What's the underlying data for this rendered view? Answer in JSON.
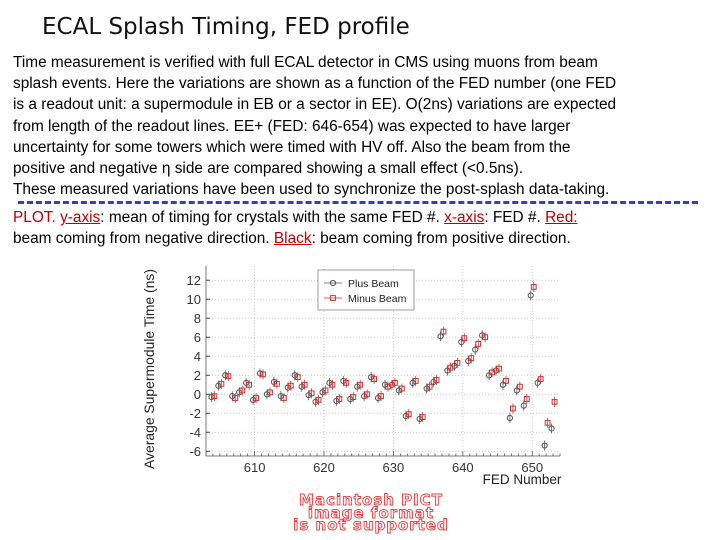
{
  "slide": {
    "title": "ECAL Splash Timing, FED profile",
    "paragraph": [
      "Time measurement is verified with full ECAL detector in CMS using muons from beam",
      "splash events. Here the variations are shown as a function of the FED number (one FED",
      "is a readout unit: a supermodule in EB or a sector in EE). O(2ns) variations are expected",
      "from length of the readout lines. EE+ (FED: 646-654) was expected to have larger",
      "uncertainty for some towers which were timed with HV off. Also the beam from the",
      "positive and negative η side are compared showing a small effect (<0.5ns).",
      "These measured variations have been used to synchronize the post-splash data-taking."
    ],
    "caption": {
      "lead": "PLOT.",
      "yaxis_term": "y-axis",
      "yaxis_text": ": mean of timing for crystals with the same FED #.",
      "xaxis_term": "x-axis",
      "xaxis_text": ": FED #.",
      "red_term": "Red",
      "red_text_1": ":",
      "red_text_2": "beam coming from negative direction.",
      "black_term": "Black",
      "black_text": ": beam coming from positive direction."
    },
    "placeholder_lines": [
      "Macintosh PICT",
      "image format",
      "is not supported"
    ]
  },
  "colors": {
    "red": "#c00000",
    "dash": "#2e43b8",
    "plus": "#555555",
    "minus": "#cc3333"
  },
  "chart_data": {
    "type": "scatter",
    "title": "",
    "xlabel": "FED Number",
    "ylabel": "Average Supermodule Time (ns)",
    "xlim": [
      603,
      654
    ],
    "ylim": [
      -6.5,
      13.5
    ],
    "x_ticks": [
      610,
      620,
      630,
      640,
      650
    ],
    "y_ticks": [
      -6,
      -4,
      -2,
      0,
      2,
      4,
      6,
      8,
      10,
      12
    ],
    "legend": {
      "position": "top-center",
      "entries": [
        "Plus Beam",
        "Minus Beam"
      ]
    },
    "series": [
      {
        "name": "Plus Beam",
        "marker": "circle",
        "x": [
          604,
          605,
          606,
          607,
          608,
          609,
          610,
          611,
          612,
          613,
          614,
          615,
          616,
          617,
          618,
          619,
          620,
          621,
          622,
          623,
          624,
          625,
          626,
          627,
          628,
          629,
          630,
          631,
          632,
          633,
          634,
          635,
          636,
          637,
          638,
          639,
          640,
          641,
          642,
          643,
          644,
          645,
          646,
          647,
          648,
          649,
          650,
          651,
          652,
          653
        ],
        "y": [
          -0.3,
          0.9,
          2.0,
          -0.2,
          0.2,
          1.2,
          -0.6,
          2.2,
          0.0,
          1.3,
          -0.2,
          0.7,
          2.0,
          0.8,
          -0.1,
          -0.8,
          0.2,
          1.2,
          -0.7,
          1.4,
          -0.5,
          0.8,
          -0.2,
          1.8,
          -0.4,
          1.0,
          1.0,
          0.4,
          -2.3,
          1.2,
          -2.6,
          0.6,
          1.3,
          6.1,
          2.5,
          3.0,
          5.5,
          3.5,
          4.7,
          6.2,
          2.0,
          2.5,
          1.0,
          -2.5,
          0.4,
          -1.2,
          10.4,
          1.2,
          -5.4,
          -3.6
        ]
      },
      {
        "name": "Minus Beam",
        "marker": "square",
        "x": [
          604,
          605,
          606,
          607,
          608,
          609,
          610,
          611,
          612,
          613,
          614,
          615,
          616,
          617,
          618,
          619,
          620,
          621,
          622,
          623,
          624,
          625,
          626,
          627,
          628,
          629,
          630,
          631,
          632,
          633,
          634,
          635,
          636,
          637,
          638,
          639,
          640,
          641,
          642,
          643,
          644,
          645,
          646,
          647,
          648,
          649,
          650,
          651,
          652,
          653
        ],
        "y": [
          -0.2,
          1.1,
          1.9,
          -0.4,
          0.4,
          1.0,
          -0.4,
          2.1,
          0.2,
          1.1,
          -0.4,
          0.9,
          1.8,
          1.0,
          0.1,
          -0.6,
          0.4,
          1.0,
          -0.5,
          1.2,
          -0.3,
          1.0,
          0.0,
          1.6,
          -0.2,
          0.8,
          1.2,
          0.6,
          -2.1,
          1.4,
          -2.4,
          0.8,
          1.5,
          6.6,
          2.8,
          3.3,
          5.9,
          3.8,
          5.3,
          6.0,
          2.3,
          2.7,
          1.4,
          -1.5,
          0.8,
          -0.5,
          11.3,
          1.6,
          -3.0,
          -0.8
        ]
      }
    ]
  }
}
